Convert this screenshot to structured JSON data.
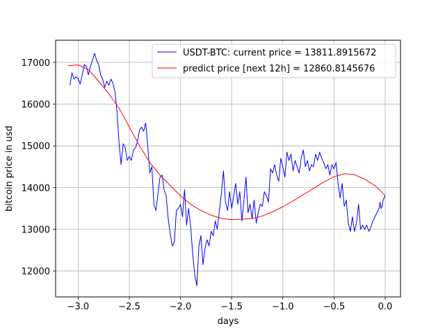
{
  "chart_data": {
    "type": "line",
    "xlabel": "days",
    "ylabel": "bitcoin price in usd",
    "xlim": [
      -3.22,
      0.15
    ],
    "ylim": [
      11380,
      17530
    ],
    "xticks": [
      -3.0,
      -2.5,
      -2.0,
      -1.5,
      -1.0,
      -0.5,
      0.0
    ],
    "xtick_labels": [
      "−3.0",
      "−2.5",
      "−2.0",
      "−1.5",
      "−1.0",
      "−0.5",
      "0.0"
    ],
    "yticks": [
      12000,
      13000,
      14000,
      15000,
      16000,
      17000
    ],
    "ytick_labels": [
      "12000",
      "13000",
      "14000",
      "15000",
      "16000",
      "17000"
    ],
    "grid": true,
    "legend_position": "top-right",
    "series": [
      {
        "name": "USDT-BTC: current price = 13811.8915672",
        "color": "#0000ff",
        "x": [
          -3.08,
          -3.06,
          -3.04,
          -3.02,
          -3.0,
          -2.98,
          -2.96,
          -2.94,
          -2.92,
          -2.9,
          -2.88,
          -2.86,
          -2.84,
          -2.82,
          -2.8,
          -2.78,
          -2.76,
          -2.74,
          -2.72,
          -2.7,
          -2.68,
          -2.66,
          -2.64,
          -2.62,
          -2.6,
          -2.58,
          -2.56,
          -2.54,
          -2.52,
          -2.5,
          -2.48,
          -2.46,
          -2.44,
          -2.42,
          -2.4,
          -2.38,
          -2.36,
          -2.34,
          -2.32,
          -2.3,
          -2.28,
          -2.26,
          -2.24,
          -2.22,
          -2.2,
          -2.18,
          -2.16,
          -2.14,
          -2.12,
          -2.1,
          -2.08,
          -2.06,
          -2.04,
          -2.02,
          -2.0,
          -1.98,
          -1.96,
          -1.94,
          -1.92,
          -1.9,
          -1.88,
          -1.86,
          -1.84,
          -1.82,
          -1.8,
          -1.78,
          -1.76,
          -1.74,
          -1.72,
          -1.7,
          -1.68,
          -1.66,
          -1.64,
          -1.62,
          -1.6,
          -1.58,
          -1.56,
          -1.54,
          -1.52,
          -1.5,
          -1.48,
          -1.46,
          -1.44,
          -1.42,
          -1.4,
          -1.38,
          -1.36,
          -1.34,
          -1.32,
          -1.3,
          -1.28,
          -1.26,
          -1.24,
          -1.22,
          -1.2,
          -1.18,
          -1.16,
          -1.14,
          -1.12,
          -1.1,
          -1.08,
          -1.06,
          -1.04,
          -1.02,
          -1.0,
          -0.98,
          -0.96,
          -0.94,
          -0.92,
          -0.9,
          -0.88,
          -0.86,
          -0.84,
          -0.82,
          -0.8,
          -0.78,
          -0.76,
          -0.74,
          -0.72,
          -0.7,
          -0.68,
          -0.66,
          -0.64,
          -0.62,
          -0.6,
          -0.58,
          -0.56,
          -0.54,
          -0.52,
          -0.5,
          -0.48,
          -0.46,
          -0.44,
          -0.42,
          -0.4,
          -0.38,
          -0.36,
          -0.34,
          -0.32,
          -0.3,
          -0.28,
          -0.26,
          -0.24,
          -0.22,
          -0.2,
          -0.18,
          -0.16,
          -0.14,
          -0.12,
          -0.1,
          -0.08,
          -0.06,
          -0.05,
          -0.04,
          -0.03,
          -0.02,
          -0.01,
          0.0
        ],
        "y": [
          16450,
          16750,
          16600,
          16650,
          16620,
          16480,
          16700,
          16950,
          16900,
          16700,
          16900,
          17050,
          17220,
          17050,
          16950,
          16700,
          16600,
          16400,
          16550,
          16450,
          16600,
          16500,
          16300,
          15800,
          15050,
          14550,
          15050,
          14950,
          14650,
          14750,
          14650,
          14900,
          14950,
          15100,
          15380,
          15450,
          15350,
          15550,
          15000,
          14350,
          14500,
          13600,
          13450,
          13850,
          14250,
          14300,
          13950,
          13800,
          13250,
          12900,
          12600,
          12700,
          13450,
          13500,
          13600,
          13300,
          13950,
          13100,
          13500,
          13050,
          12400,
          11900,
          11650,
          12600,
          12850,
          12150,
          12550,
          12750,
          12600,
          12950,
          12850,
          13200,
          13000,
          13450,
          13850,
          14400,
          13650,
          13450,
          13900,
          13500,
          13800,
          14100,
          13600,
          13900,
          13200,
          13700,
          14250,
          13400,
          13600,
          13250,
          13700,
          13150,
          13400,
          13600,
          13550,
          13900,
          13800,
          13650,
          14450,
          14350,
          14550,
          14300,
          14150,
          14700,
          14500,
          14250,
          14850,
          14650,
          14800,
          14400,
          14650,
          14500,
          14350,
          14700,
          14900,
          14500,
          14650,
          14400,
          14550,
          14500,
          14800,
          14650,
          14850,
          14700,
          14600,
          14450,
          14550,
          14300,
          14550,
          14450,
          14600,
          14100,
          13750,
          14100,
          13550,
          13700,
          13150,
          12950,
          13300,
          12950,
          13150,
          13600,
          13000,
          13100,
          13000,
          13100,
          12950,
          13050,
          13200,
          13300,
          13400,
          13500,
          13650,
          13500,
          13550,
          13700,
          13750,
          13812
        ],
        "line_width": 1
      },
      {
        "name": "predict price [next 12h] = 12860.8145676",
        "color": "#ff0000",
        "x": [
          -3.1,
          -3.0,
          -2.9,
          -2.8,
          -2.7,
          -2.6,
          -2.5,
          -2.4,
          -2.3,
          -2.2,
          -2.1,
          -2.0,
          -1.9,
          -1.8,
          -1.7,
          -1.6,
          -1.5,
          -1.4,
          -1.3,
          -1.2,
          -1.1,
          -1.0,
          -0.9,
          -0.8,
          -0.7,
          -0.6,
          -0.5,
          -0.4,
          -0.3,
          -0.2,
          -0.1,
          0.0
        ],
        "y": [
          16920,
          16940,
          16830,
          16550,
          16250,
          15900,
          15450,
          15000,
          14600,
          14300,
          14050,
          13800,
          13600,
          13450,
          13340,
          13260,
          13230,
          13240,
          13260,
          13320,
          13420,
          13540,
          13680,
          13830,
          13980,
          14130,
          14260,
          14330,
          14310,
          14200,
          14050,
          13812
        ],
        "line_width": 1
      }
    ]
  }
}
